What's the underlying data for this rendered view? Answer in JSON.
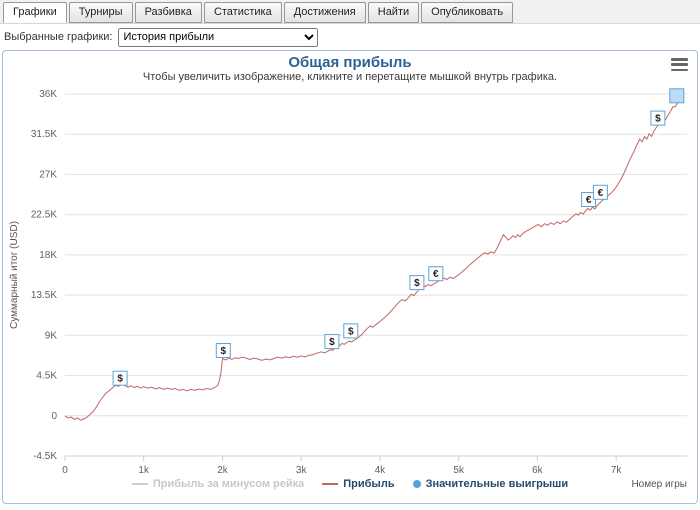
{
  "tabs": [
    {
      "key": "graphs",
      "label": "Графики",
      "active": true
    },
    {
      "key": "tournaments",
      "label": "Турниры",
      "active": false
    },
    {
      "key": "breakdown",
      "label": "Разбивка",
      "active": false
    },
    {
      "key": "statistics",
      "label": "Статистика",
      "active": false
    },
    {
      "key": "achievements",
      "label": "Достижения",
      "active": false
    },
    {
      "key": "find",
      "label": "Найти",
      "active": false
    },
    {
      "key": "publish",
      "label": "Опубликовать",
      "active": false
    }
  ],
  "filter": {
    "label": "Выбранные графики:",
    "selected": "История прибыли"
  },
  "colors": {
    "title": "#2b6299",
    "line": "#c26565",
    "grid": "#e2e2e2",
    "axis": "#c0d0e0",
    "marker_border": "#5da2d8",
    "marker_highlight": "#badcf5",
    "legend_dot": "#55a3dc"
  },
  "chart_data": {
    "type": "line",
    "title": "Общая прибыль",
    "subtitle": "Чтобы увеличить изображение, кликните и перетащите мышкой внутрь графика.",
    "xlabel": "Номер игры",
    "ylabel": "Суммарный итог (USD)",
    "xlim": [
      0,
      7900
    ],
    "ylim": [
      -4500,
      36000
    ],
    "grid": "horizontal",
    "legend_position": "bottom-center",
    "xticks": [
      {
        "v": 0,
        "label": "0"
      },
      {
        "v": 1000,
        "label": "1k"
      },
      {
        "v": 2000,
        "label": "2k"
      },
      {
        "v": 3000,
        "label": "3k"
      },
      {
        "v": 4000,
        "label": "4k"
      },
      {
        "v": 5000,
        "label": "5k"
      },
      {
        "v": 6000,
        "label": "6k"
      },
      {
        "v": 7000,
        "label": "7k"
      }
    ],
    "yticks": [
      {
        "v": 36000,
        "label": "36K"
      },
      {
        "v": 31500,
        "label": "31.5K"
      },
      {
        "v": 27000,
        "label": "27K"
      },
      {
        "v": 22500,
        "label": "22.5K"
      },
      {
        "v": 18000,
        "label": "18K"
      },
      {
        "v": 13500,
        "label": "13.5K"
      },
      {
        "v": 9000,
        "label": "9K"
      },
      {
        "v": 4500,
        "label": "4.5K"
      },
      {
        "v": 0,
        "label": "0"
      },
      {
        "v": -4500,
        "label": "-4.5K"
      }
    ],
    "legend": [
      {
        "key": "profit-minus-rake",
        "label": "Прибыль за минусом рейка",
        "type": "line",
        "color": "#cccccc",
        "disabled": true
      },
      {
        "key": "profit",
        "label": "Прибыль",
        "type": "line",
        "color": "#c26565",
        "disabled": false
      },
      {
        "key": "significant-wins",
        "label": "Значительные выигрыши",
        "type": "dot",
        "color": "#55a3dc",
        "disabled": false
      }
    ],
    "series": [
      {
        "name": "Прибыль",
        "color": "#c26565",
        "points": [
          [
            0,
            0
          ],
          [
            40,
            -250
          ],
          [
            80,
            -150
          ],
          [
            120,
            -400
          ],
          [
            160,
            -250
          ],
          [
            200,
            -500
          ],
          [
            240,
            -350
          ],
          [
            280,
            -150
          ],
          [
            320,
            150
          ],
          [
            360,
            500
          ],
          [
            400,
            1000
          ],
          [
            440,
            1600
          ],
          [
            480,
            2100
          ],
          [
            520,
            2500
          ],
          [
            560,
            2800
          ],
          [
            600,
            3100
          ],
          [
            640,
            3400
          ],
          [
            680,
            3300
          ],
          [
            720,
            3550
          ],
          [
            760,
            3400
          ],
          [
            800,
            3200
          ],
          [
            840,
            3350
          ],
          [
            880,
            3150
          ],
          [
            920,
            3300
          ],
          [
            960,
            3100
          ],
          [
            1000,
            3250
          ],
          [
            1050,
            3100
          ],
          [
            1100,
            3200
          ],
          [
            1150,
            3000
          ],
          [
            1200,
            3150
          ],
          [
            1250,
            2950
          ],
          [
            1300,
            3100
          ],
          [
            1350,
            2950
          ],
          [
            1400,
            3050
          ],
          [
            1450,
            2850
          ],
          [
            1500,
            2950
          ],
          [
            1550,
            2800
          ],
          [
            1600,
            2950
          ],
          [
            1650,
            2850
          ],
          [
            1700,
            3000
          ],
          [
            1750,
            2900
          ],
          [
            1800,
            3050
          ],
          [
            1850,
            2950
          ],
          [
            1900,
            3150
          ],
          [
            1940,
            3400
          ],
          [
            1960,
            3900
          ],
          [
            1980,
            4800
          ],
          [
            2000,
            6400
          ],
          [
            2040,
            6250
          ],
          [
            2080,
            6450
          ],
          [
            2120,
            6300
          ],
          [
            2160,
            6500
          ],
          [
            2200,
            6400
          ],
          [
            2250,
            6550
          ],
          [
            2300,
            6450
          ],
          [
            2350,
            6300
          ],
          [
            2400,
            6450
          ],
          [
            2450,
            6350
          ],
          [
            2500,
            6200
          ],
          [
            2550,
            6350
          ],
          [
            2600,
            6250
          ],
          [
            2650,
            6400
          ],
          [
            2700,
            6550
          ],
          [
            2750,
            6450
          ],
          [
            2800,
            6600
          ],
          [
            2850,
            6500
          ],
          [
            2900,
            6650
          ],
          [
            2950,
            6550
          ],
          [
            3000,
            6700
          ],
          [
            3050,
            6600
          ],
          [
            3100,
            6750
          ],
          [
            3150,
            6850
          ],
          [
            3200,
            7000
          ],
          [
            3250,
            7150
          ],
          [
            3300,
            7050
          ],
          [
            3340,
            7250
          ],
          [
            3380,
            7400
          ],
          [
            3400,
            7300
          ],
          [
            3430,
            7650
          ],
          [
            3460,
            8000
          ],
          [
            3490,
            7850
          ],
          [
            3520,
            8100
          ],
          [
            3550,
            8000
          ],
          [
            3580,
            8200
          ],
          [
            3610,
            8350
          ],
          [
            3640,
            8250
          ],
          [
            3670,
            8450
          ],
          [
            3700,
            8600
          ],
          [
            3730,
            8800
          ],
          [
            3760,
            9000
          ],
          [
            3790,
            9300
          ],
          [
            3820,
            9600
          ],
          [
            3850,
            9850
          ],
          [
            3880,
            10050
          ],
          [
            3910,
            9900
          ],
          [
            3940,
            10150
          ],
          [
            3970,
            10350
          ],
          [
            4000,
            10550
          ],
          [
            4040,
            10850
          ],
          [
            4080,
            11150
          ],
          [
            4120,
            11500
          ],
          [
            4160,
            11900
          ],
          [
            4200,
            12300
          ],
          [
            4240,
            12700
          ],
          [
            4280,
            13000
          ],
          [
            4320,
            12850
          ],
          [
            4360,
            13200
          ],
          [
            4400,
            13600
          ],
          [
            4430,
            13450
          ],
          [
            4460,
            13750
          ],
          [
            4490,
            14050
          ],
          [
            4520,
            14350
          ],
          [
            4550,
            14600
          ],
          [
            4580,
            14450
          ],
          [
            4610,
            14700
          ],
          [
            4650,
            14550
          ],
          [
            4690,
            14800
          ],
          [
            4730,
            15000
          ],
          [
            4770,
            15200
          ],
          [
            4810,
            15400
          ],
          [
            4850,
            15250
          ],
          [
            4890,
            15500
          ],
          [
            4930,
            15350
          ],
          [
            4970,
            15600
          ],
          [
            5010,
            15850
          ],
          [
            5050,
            16150
          ],
          [
            5090,
            16450
          ],
          [
            5130,
            16800
          ],
          [
            5170,
            17100
          ],
          [
            5210,
            17400
          ],
          [
            5250,
            17700
          ],
          [
            5290,
            18000
          ],
          [
            5330,
            18250
          ],
          [
            5370,
            18100
          ],
          [
            5410,
            18350
          ],
          [
            5450,
            18200
          ],
          [
            5480,
            18650
          ],
          [
            5510,
            19150
          ],
          [
            5540,
            19750
          ],
          [
            5570,
            20250
          ],
          [
            5600,
            19950
          ],
          [
            5630,
            19650
          ],
          [
            5660,
            19850
          ],
          [
            5690,
            20150
          ],
          [
            5720,
            19950
          ],
          [
            5750,
            20250
          ],
          [
            5780,
            20050
          ],
          [
            5810,
            20350
          ],
          [
            5850,
            20600
          ],
          [
            5890,
            20800
          ],
          [
            5930,
            21000
          ],
          [
            5970,
            21200
          ],
          [
            6010,
            21400
          ],
          [
            6050,
            21150
          ],
          [
            6090,
            21500
          ],
          [
            6130,
            21300
          ],
          [
            6170,
            21600
          ],
          [
            6210,
            21400
          ],
          [
            6250,
            21700
          ],
          [
            6290,
            21500
          ],
          [
            6330,
            21800
          ],
          [
            6370,
            21650
          ],
          [
            6410,
            22000
          ],
          [
            6450,
            22300
          ],
          [
            6490,
            22600
          ],
          [
            6520,
            22450
          ],
          [
            6550,
            22750
          ],
          [
            6580,
            22550
          ],
          [
            6610,
            22900
          ],
          [
            6640,
            23200
          ],
          [
            6670,
            23000
          ],
          [
            6700,
            23350
          ],
          [
            6730,
            23150
          ],
          [
            6760,
            23500
          ],
          [
            6790,
            23800
          ],
          [
            6820,
            24050
          ],
          [
            6860,
            24350
          ],
          [
            6900,
            24650
          ],
          [
            6940,
            24950
          ],
          [
            6980,
            25350
          ],
          [
            7020,
            25850
          ],
          [
            7060,
            26450
          ],
          [
            7100,
            27150
          ],
          [
            7140,
            27950
          ],
          [
            7180,
            28750
          ],
          [
            7220,
            29450
          ],
          [
            7260,
            30250
          ],
          [
            7300,
            30950
          ],
          [
            7330,
            30650
          ],
          [
            7360,
            31250
          ],
          [
            7390,
            30950
          ],
          [
            7420,
            31550
          ],
          [
            7450,
            31250
          ],
          [
            7480,
            31850
          ],
          [
            7510,
            32250
          ],
          [
            7540,
            32650
          ],
          [
            7570,
            33050
          ],
          [
            7600,
            33350
          ],
          [
            7630,
            33150
          ],
          [
            7660,
            33650
          ],
          [
            7690,
            34050
          ],
          [
            7720,
            34550
          ],
          [
            7750,
            34600
          ],
          [
            7780,
            35000
          ]
        ]
      }
    ],
    "markers": [
      {
        "x": 700,
        "y": 4200,
        "sym": "$"
      },
      {
        "x": 2010,
        "y": 7300,
        "sym": "$"
      },
      {
        "x": 3390,
        "y": 8300,
        "sym": "$"
      },
      {
        "x": 3630,
        "y": 9500,
        "sym": "$"
      },
      {
        "x": 4470,
        "y": 14900,
        "sym": "$"
      },
      {
        "x": 4710,
        "y": 15900,
        "sym": "€"
      },
      {
        "x": 6650,
        "y": 24200,
        "sym": "€"
      },
      {
        "x": 6800,
        "y": 25000,
        "sym": "€"
      },
      {
        "x": 7530,
        "y": 33300,
        "sym": "$"
      },
      {
        "x": 7770,
        "y": 35800,
        "sym": "",
        "highlight": true
      }
    ]
  }
}
